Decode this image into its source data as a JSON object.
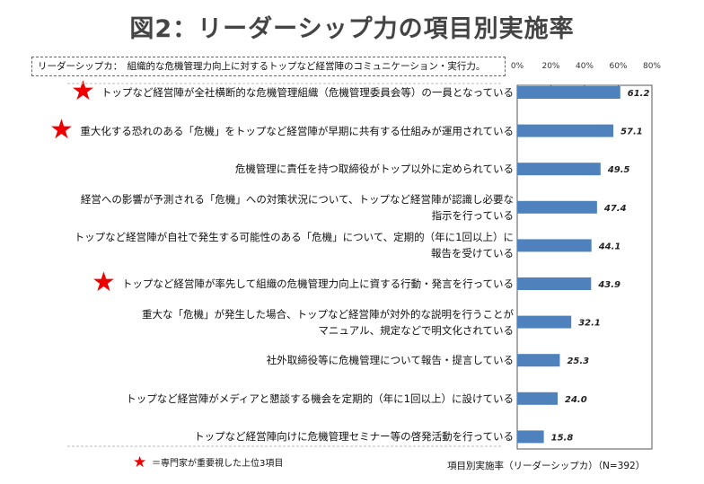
{
  "title": "図2：リーダーシップ力の項目別実施率",
  "definition": "リーダーシップカ：　組織的な危機管理力向上に対するトップなど経営陣のコミュニケーション・実行力。",
  "footnote": {
    "icon": "red-star-icon",
    "text": "＝専門家が重要視した上位3項目"
  },
  "note": "項目別実施率（リーダーシップカ）（N=392）",
  "chart_data": {
    "type": "bar",
    "orientation": "horizontal",
    "xlim": [
      0,
      80
    ],
    "xticks": [
      "0%",
      "20%",
      "40%",
      "60%",
      "80%"
    ],
    "bar_color": "#4f81bd",
    "star_color": "#ee0000",
    "categories": [
      {
        "lines": [
          "トップなど経営陣が全社横断的な危機管理組織（危機管理委員会等）の一員となっている"
        ],
        "star": true
      },
      {
        "lines": [
          "重大化する恐れのある「危機」をトップなど経営陣が早期に共有する仕組みが運用されている"
        ],
        "star": true
      },
      {
        "lines": [
          "危機管理に責任を持つ取締役がトップ以外に定められている"
        ],
        "star": false
      },
      {
        "lines": [
          "経営への影響が予測される「危機」への対策状況について、トップなど経営陣が認識し必要な",
          "指示を行っている"
        ],
        "star": false
      },
      {
        "lines": [
          "トップなど経営陣が自社で発生する可能性のある「危機」について、定期的（年に1回以上）に",
          "報告を受けている"
        ],
        "star": false
      },
      {
        "lines": [
          "トップなど経営陣が率先して組織の危機管理力向上に資する行動・発言を行っている"
        ],
        "star": true
      },
      {
        "lines": [
          "重大な「危機」が発生した場合、トップなど経営陣が対外的な説明を行うことが",
          "マニュアル、規定などで明文化されている"
        ],
        "star": false
      },
      {
        "lines": [
          "社外取締役等に危機管理について報告・提言している"
        ],
        "star": false
      },
      {
        "lines": [
          "トップなど経営陣がメディアと懇談する機会を定期的（年に1回以上）に設けている"
        ],
        "star": false
      },
      {
        "lines": [
          "トップなど経営陣向けに危機管理セミナー等の啓発活動を行っている"
        ],
        "star": false
      }
    ],
    "values": [
      61.2,
      57.1,
      49.5,
      47.4,
      44.1,
      43.9,
      32.1,
      25.3,
      24.0,
      15.8
    ],
    "value_labels": [
      "61.2",
      "57.1",
      "49.5",
      "47.4",
      "44.1",
      "43.9",
      "32.1",
      "25.3",
      "24.0",
      "15.8"
    ]
  }
}
